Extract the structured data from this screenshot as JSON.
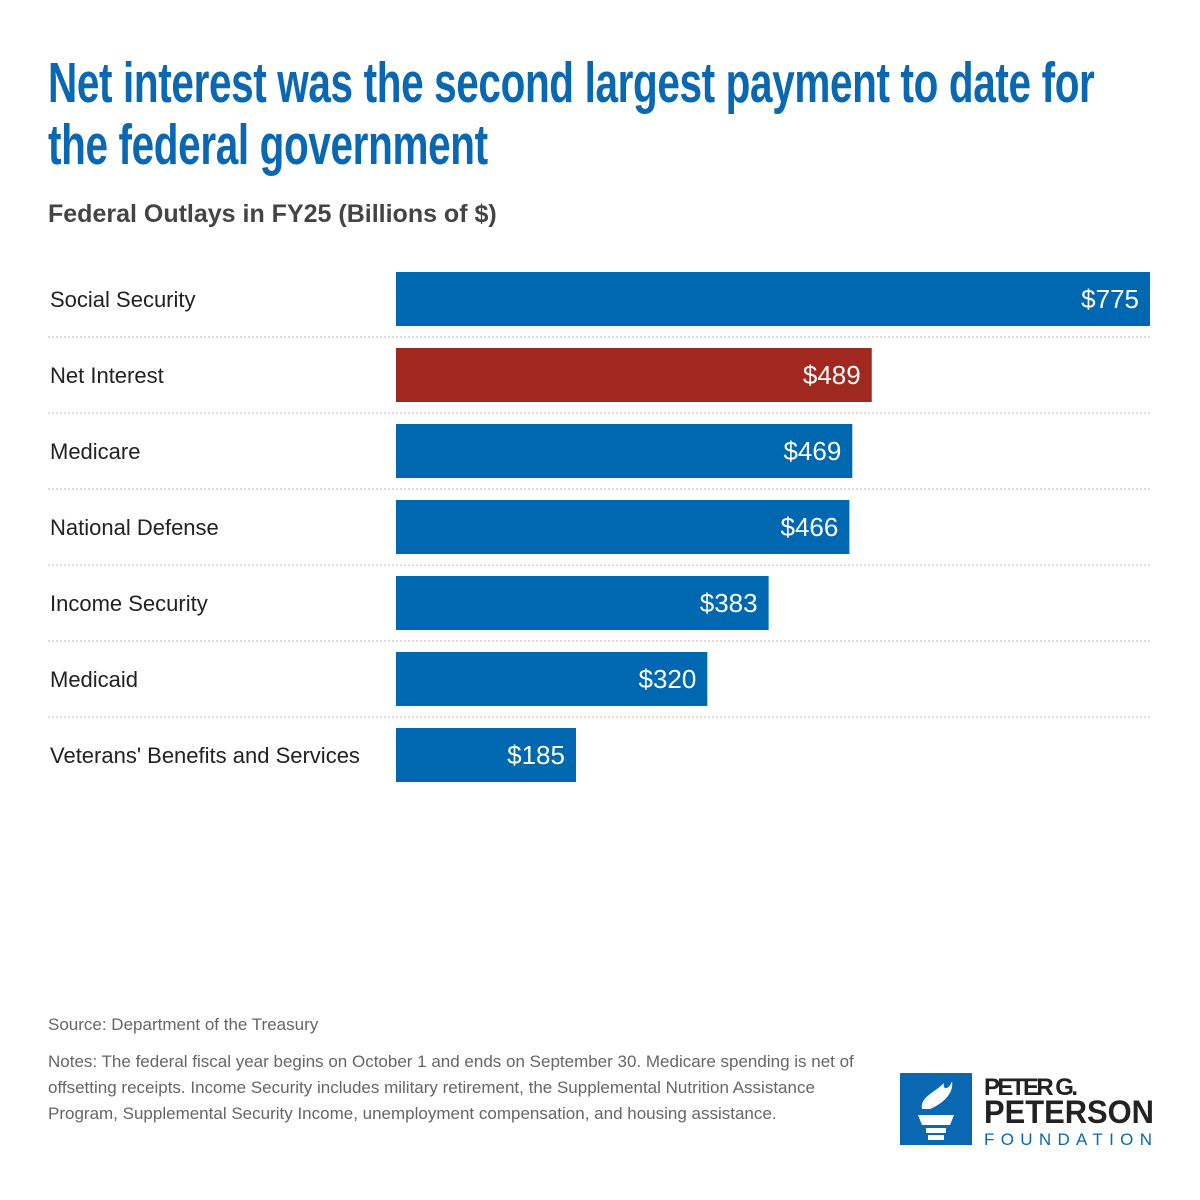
{
  "title": "Net interest was the second largest payment to date for the federal government",
  "subtitle": "Federal Outlays in FY25 (Billions of $)",
  "chart_data": {
    "type": "bar",
    "orientation": "horizontal",
    "title": "Net interest was the second largest payment to date for the federal government",
    "subtitle": "Federal Outlays in FY25 (Billions of $)",
    "categories": [
      "Social Security",
      "Net Interest",
      "Medicare",
      "National Defense",
      "Income Security",
      "Medicaid",
      "Veterans' Benefits and Services"
    ],
    "values": [
      775,
      489,
      469,
      466,
      383,
      320,
      185
    ],
    "value_labels": [
      "$775",
      "$489",
      "$469",
      "$466",
      "$383",
      "$320",
      "$185"
    ],
    "xlim": [
      0,
      775
    ],
    "grid": false,
    "colors": {
      "default": "#0067b1",
      "highlight": "#a0281f"
    },
    "highlight_category": "Net Interest"
  },
  "source": "Source: Department of the Treasury",
  "notes": "Notes: The federal fiscal year begins on October 1 and ends on September 30. Medicare spending is net of offsetting receipts. Income Security includes military retirement, the Supplemental Nutrition Assistance Program, Supplemental Security Income, unemployment compensation, and housing assistance.",
  "logo": {
    "line1": "PETER G.",
    "line2": "PETERSON",
    "line3": "FOUNDATION",
    "icon": "torch-icon"
  }
}
